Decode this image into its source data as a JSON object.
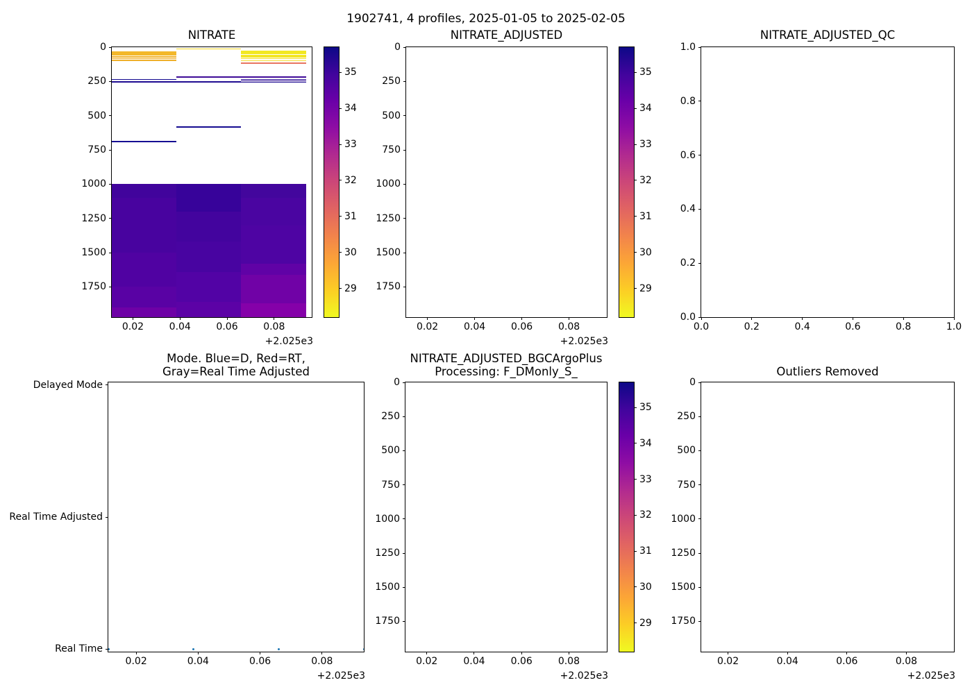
{
  "figure": {
    "suptitle": "1902741, 4 profiles, 2025-01-05 to 2025-02-05"
  },
  "colors": {
    "spine": "#000000",
    "text": "#000000",
    "scatter_point": "#1f77b4",
    "colorbar_gradient": [
      "#0d0887",
      "#41049d",
      "#6a00a8",
      "#8f0da4",
      "#b12a90",
      "#cc4778",
      "#e16462",
      "#f2844b",
      "#fca636",
      "#fcce25",
      "#f0f921"
    ]
  },
  "chart_data": [
    {
      "id": "nitrate",
      "type": "heatmap",
      "title": "NITRATE",
      "xlim": [
        2025.011,
        2025.096
      ],
      "x_offset": "+2.025e3",
      "xticks": [
        {
          "v": 2025.02,
          "l": "0.02"
        },
        {
          "v": 2025.04,
          "l": "0.04"
        },
        {
          "v": 2025.06,
          "l": "0.06"
        },
        {
          "v": 2025.08,
          "l": "0.08"
        }
      ],
      "ylim": [
        0,
        1971
      ],
      "y_dir": "down",
      "yticks": [
        {
          "v": 0,
          "l": "0"
        },
        {
          "v": 250,
          "l": "250"
        },
        {
          "v": 500,
          "l": "500"
        },
        {
          "v": 750,
          "l": "750"
        },
        {
          "v": 1000,
          "l": "1000"
        },
        {
          "v": 1250,
          "l": "1250"
        },
        {
          "v": 1500,
          "l": "1500"
        },
        {
          "v": 1750,
          "l": "1750"
        }
      ],
      "profile_times": [
        2025.011,
        2025.0385,
        2025.066,
        2025.0935
      ],
      "colorbar": {
        "vmin": 28.2,
        "vmax": 35.7,
        "ticks": [
          35,
          34,
          33,
          32,
          31,
          30,
          29
        ]
      },
      "cells": [
        {
          "x0": 2025.011,
          "x1": 2025.0385,
          "d0": 28,
          "d1": 61,
          "c": "#f3b82b",
          "v": 29.9
        },
        {
          "x0": 2025.011,
          "x1": 2025.0385,
          "d0": 67,
          "d1": 74,
          "c": "#f1b129",
          "v": 30.0
        },
        {
          "x0": 2025.011,
          "x1": 2025.0385,
          "d0": 80,
          "d1": 86,
          "c": "#f0ad27",
          "v": 30.1
        },
        {
          "x0": 2025.011,
          "x1": 2025.0385,
          "d0": 92,
          "d1": 98,
          "c": "#efb02a",
          "v": 30.0
        },
        {
          "x0": 2025.011,
          "x1": 2025.0385,
          "d0": 232,
          "d1": 240,
          "c": "#10078f",
          "v": 35.5
        },
        {
          "x0": 2025.011,
          "x1": 2025.0385,
          "d0": 249,
          "d1": 257,
          "c": "#1d0a91",
          "v": 35.3
        },
        {
          "x0": 2025.011,
          "x1": 2025.0385,
          "d0": 684,
          "d1": 692,
          "c": "#150992",
          "v": 35.4
        },
        {
          "x0": 2025.0385,
          "x1": 2025.066,
          "d0": 10,
          "d1": 17,
          "c": "#f6d724",
          "v": 29.2
        },
        {
          "x0": 2025.0385,
          "x1": 2025.066,
          "d0": 214,
          "d1": 222,
          "c": "#3d0a96",
          "v": 34.8
        },
        {
          "x0": 2025.0385,
          "x1": 2025.066,
          "d0": 250,
          "d1": 257,
          "c": "#1f0b91",
          "v": 35.3
        },
        {
          "x0": 2025.0385,
          "x1": 2025.066,
          "d0": 578,
          "d1": 586,
          "c": "#140a90",
          "v": 35.4
        },
        {
          "x0": 2025.066,
          "x1": 2025.0935,
          "d0": 24,
          "d1": 50,
          "c": "#f2e822",
          "v": 28.9
        },
        {
          "x0": 2025.066,
          "x1": 2025.0935,
          "d0": 56,
          "d1": 62,
          "c": "#f3e723",
          "v": 28.9
        },
        {
          "x0": 2025.066,
          "x1": 2025.0935,
          "d0": 68,
          "d1": 74,
          "c": "#f2e426",
          "v": 28.9
        },
        {
          "x0": 2025.066,
          "x1": 2025.0935,
          "d0": 81,
          "d1": 87,
          "c": "#f4e22a",
          "v": 29.0
        },
        {
          "x0": 2025.066,
          "x1": 2025.0935,
          "d0": 94,
          "d1": 100,
          "c": "#f5df2d",
          "v": 29.0
        },
        {
          "x0": 2025.066,
          "x1": 2025.0935,
          "d0": 114,
          "d1": 121,
          "c": "#e8735f",
          "v": 31.0
        },
        {
          "x0": 2025.066,
          "x1": 2025.0935,
          "d0": 214,
          "d1": 221,
          "c": "#400a98",
          "v": 34.7
        },
        {
          "x0": 2025.066,
          "x1": 2025.0935,
          "d0": 231,
          "d1": 237,
          "c": "#270b93",
          "v": 35.1
        },
        {
          "x0": 2025.066,
          "x1": 2025.0935,
          "d0": 242,
          "d1": 248,
          "c": "#2c0a94",
          "v": 35.0
        },
        {
          "x0": 2025.066,
          "x1": 2025.0935,
          "d0": 251,
          "d1": 257,
          "c": "#1d0a91",
          "v": 35.3
        },
        {
          "x0": 2025.011,
          "x1": 2025.0385,
          "d0": 1000,
          "d1": 1100,
          "c": "#41049c",
          "v": 34.8
        },
        {
          "x0": 2025.011,
          "x1": 2025.0385,
          "d0": 1100,
          "d1": 1500,
          "c": "#48039f",
          "v": 34.6
        },
        {
          "x0": 2025.011,
          "x1": 2025.0385,
          "d0": 1500,
          "d1": 1750,
          "c": "#5002a2",
          "v": 34.4
        },
        {
          "x0": 2025.011,
          "x1": 2025.0385,
          "d0": 1750,
          "d1": 1900,
          "c": "#5902a4",
          "v": 34.3
        },
        {
          "x0": 2025.011,
          "x1": 2025.0385,
          "d0": 1900,
          "d1": 1971,
          "c": "#6e01a6",
          "v": 34.0
        },
        {
          "x0": 2025.0385,
          "x1": 2025.066,
          "d0": 1000,
          "d1": 1200,
          "c": "#37039a",
          "v": 34.9
        },
        {
          "x0": 2025.0385,
          "x1": 2025.066,
          "d0": 1200,
          "d1": 1420,
          "c": "#43049e",
          "v": 34.7
        },
        {
          "x0": 2025.0385,
          "x1": 2025.066,
          "d0": 1420,
          "d1": 1640,
          "c": "#4804a1",
          "v": 34.6
        },
        {
          "x0": 2025.0385,
          "x1": 2025.066,
          "d0": 1640,
          "d1": 1860,
          "c": "#5203a5",
          "v": 34.4
        },
        {
          "x0": 2025.0385,
          "x1": 2025.066,
          "d0": 1860,
          "d1": 1971,
          "c": "#5c02a6",
          "v": 34.2
        },
        {
          "x0": 2025.066,
          "x1": 2025.0935,
          "d0": 1000,
          "d1": 1100,
          "c": "#43069d",
          "v": 34.7
        },
        {
          "x0": 2025.066,
          "x1": 2025.0935,
          "d0": 1100,
          "d1": 1300,
          "c": "#4a05a1",
          "v": 34.6
        },
        {
          "x0": 2025.066,
          "x1": 2025.0935,
          "d0": 1300,
          "d1": 1580,
          "c": "#4e04a3",
          "v": 34.5
        },
        {
          "x0": 2025.066,
          "x1": 2025.0935,
          "d0": 1580,
          "d1": 1660,
          "c": "#6002a6",
          "v": 34.2
        },
        {
          "x0": 2025.066,
          "x1": 2025.0935,
          "d0": 1660,
          "d1": 1870,
          "c": "#7002a6",
          "v": 34.0
        },
        {
          "x0": 2025.066,
          "x1": 2025.0935,
          "d0": 1870,
          "d1": 1971,
          "c": "#8501a9",
          "v": 33.7
        }
      ]
    },
    {
      "id": "nitrate_adjusted",
      "type": "heatmap",
      "title": "NITRATE_ADJUSTED",
      "xlim": [
        2025.011,
        2025.096
      ],
      "x_offset": "+2.025e3",
      "xticks": [
        {
          "v": 2025.02,
          "l": "0.02"
        },
        {
          "v": 2025.04,
          "l": "0.04"
        },
        {
          "v": 2025.06,
          "l": "0.06"
        },
        {
          "v": 2025.08,
          "l": "0.08"
        }
      ],
      "ylim": [
        0,
        1971
      ],
      "y_dir": "down",
      "yticks": [
        {
          "v": 0,
          "l": "0"
        },
        {
          "v": 250,
          "l": "250"
        },
        {
          "v": 500,
          "l": "500"
        },
        {
          "v": 750,
          "l": "750"
        },
        {
          "v": 1000,
          "l": "1000"
        },
        {
          "v": 1250,
          "l": "1250"
        },
        {
          "v": 1500,
          "l": "1500"
        },
        {
          "v": 1750,
          "l": "1750"
        }
      ],
      "colorbar": {
        "vmin": 28.2,
        "vmax": 35.7,
        "ticks": [
          35,
          34,
          33,
          32,
          31,
          30,
          29
        ]
      },
      "cells": []
    },
    {
      "id": "nitrate_adjusted_qc",
      "type": "empty",
      "title": "NITRATE_ADJUSTED_QC",
      "xlim": [
        0,
        1
      ],
      "xticks": [
        {
          "v": 0,
          "l": "0.0"
        },
        {
          "v": 0.2,
          "l": "0.2"
        },
        {
          "v": 0.4,
          "l": "0.4"
        },
        {
          "v": 0.6,
          "l": "0.6"
        },
        {
          "v": 0.8,
          "l": "0.8"
        },
        {
          "v": 1,
          "l": "1.0"
        }
      ],
      "ylim": [
        0,
        1
      ],
      "y_dir": "up",
      "yticks": [
        {
          "v": 1,
          "l": "1.0"
        },
        {
          "v": 0.8,
          "l": "0.8"
        },
        {
          "v": 0.6,
          "l": "0.6"
        },
        {
          "v": 0.4,
          "l": "0.4"
        },
        {
          "v": 0.2,
          "l": "0.2"
        },
        {
          "v": 0,
          "l": "0.0"
        }
      ]
    },
    {
      "id": "mode",
      "type": "scatter",
      "title_lines": [
        "Mode. Blue=D, Red=RT,",
        "Gray=Real Time Adjusted"
      ],
      "xlim": [
        2025.011,
        2025.0935
      ],
      "x_offset": "+2.025e3",
      "xticks": [
        {
          "v": 2025.02,
          "l": "0.02"
        },
        {
          "v": 2025.04,
          "l": "0.04"
        },
        {
          "v": 2025.06,
          "l": "0.06"
        },
        {
          "v": 2025.08,
          "l": "0.08"
        }
      ],
      "ylim": [
        -0.02,
        2.02
      ],
      "y_dir": "up",
      "yticks": [
        {
          "v": 2,
          "l": "Delayed Mode"
        },
        {
          "v": 1,
          "l": "Real Time Adjusted"
        },
        {
          "v": 0,
          "l": "Real Time"
        }
      ],
      "points": [
        {
          "x": 2025.011,
          "y": 0,
          "mode": "Real Time"
        },
        {
          "x": 2025.0385,
          "y": 0,
          "mode": "Real Time"
        },
        {
          "x": 2025.066,
          "y": 0,
          "mode": "Real Time"
        },
        {
          "x": 2025.0935,
          "y": 0,
          "mode": "Real Time"
        }
      ]
    },
    {
      "id": "nitrate_adjusted_bgcargoplus",
      "type": "heatmap",
      "title_lines": [
        "NITRATE_ADJUSTED_BGCArgoPlus",
        "Processing: F_DMonly_S_"
      ],
      "xlim": [
        2025.011,
        2025.096
      ],
      "x_offset": "+2.025e3",
      "xticks": [
        {
          "v": 2025.02,
          "l": "0.02"
        },
        {
          "v": 2025.04,
          "l": "0.04"
        },
        {
          "v": 2025.06,
          "l": "0.06"
        },
        {
          "v": 2025.08,
          "l": "0.08"
        }
      ],
      "ylim": [
        0,
        1971
      ],
      "y_dir": "down",
      "yticks": [
        {
          "v": 0,
          "l": "0"
        },
        {
          "v": 250,
          "l": "250"
        },
        {
          "v": 500,
          "l": "500"
        },
        {
          "v": 750,
          "l": "750"
        },
        {
          "v": 1000,
          "l": "1000"
        },
        {
          "v": 1250,
          "l": "1250"
        },
        {
          "v": 1500,
          "l": "1500"
        },
        {
          "v": 1750,
          "l": "1750"
        }
      ],
      "colorbar": {
        "vmin": 28.2,
        "vmax": 35.7,
        "ticks": [
          35,
          34,
          33,
          32,
          31,
          30,
          29
        ]
      },
      "cells": []
    },
    {
      "id": "outliers_removed",
      "type": "empty",
      "title": "Outliers Removed",
      "xlim": [
        2025.011,
        2025.096
      ],
      "x_offset": "+2.025e3",
      "xticks": [
        {
          "v": 2025.02,
          "l": "0.02"
        },
        {
          "v": 2025.04,
          "l": "0.04"
        },
        {
          "v": 2025.06,
          "l": "0.06"
        },
        {
          "v": 2025.08,
          "l": "0.08"
        }
      ],
      "ylim": [
        0,
        1971
      ],
      "y_dir": "down",
      "yticks": [
        {
          "v": 0,
          "l": "0"
        },
        {
          "v": 250,
          "l": "250"
        },
        {
          "v": 500,
          "l": "500"
        },
        {
          "v": 750,
          "l": "750"
        },
        {
          "v": 1000,
          "l": "1000"
        },
        {
          "v": 1250,
          "l": "1250"
        },
        {
          "v": 1500,
          "l": "1500"
        },
        {
          "v": 1750,
          "l": "1750"
        }
      ]
    }
  ]
}
